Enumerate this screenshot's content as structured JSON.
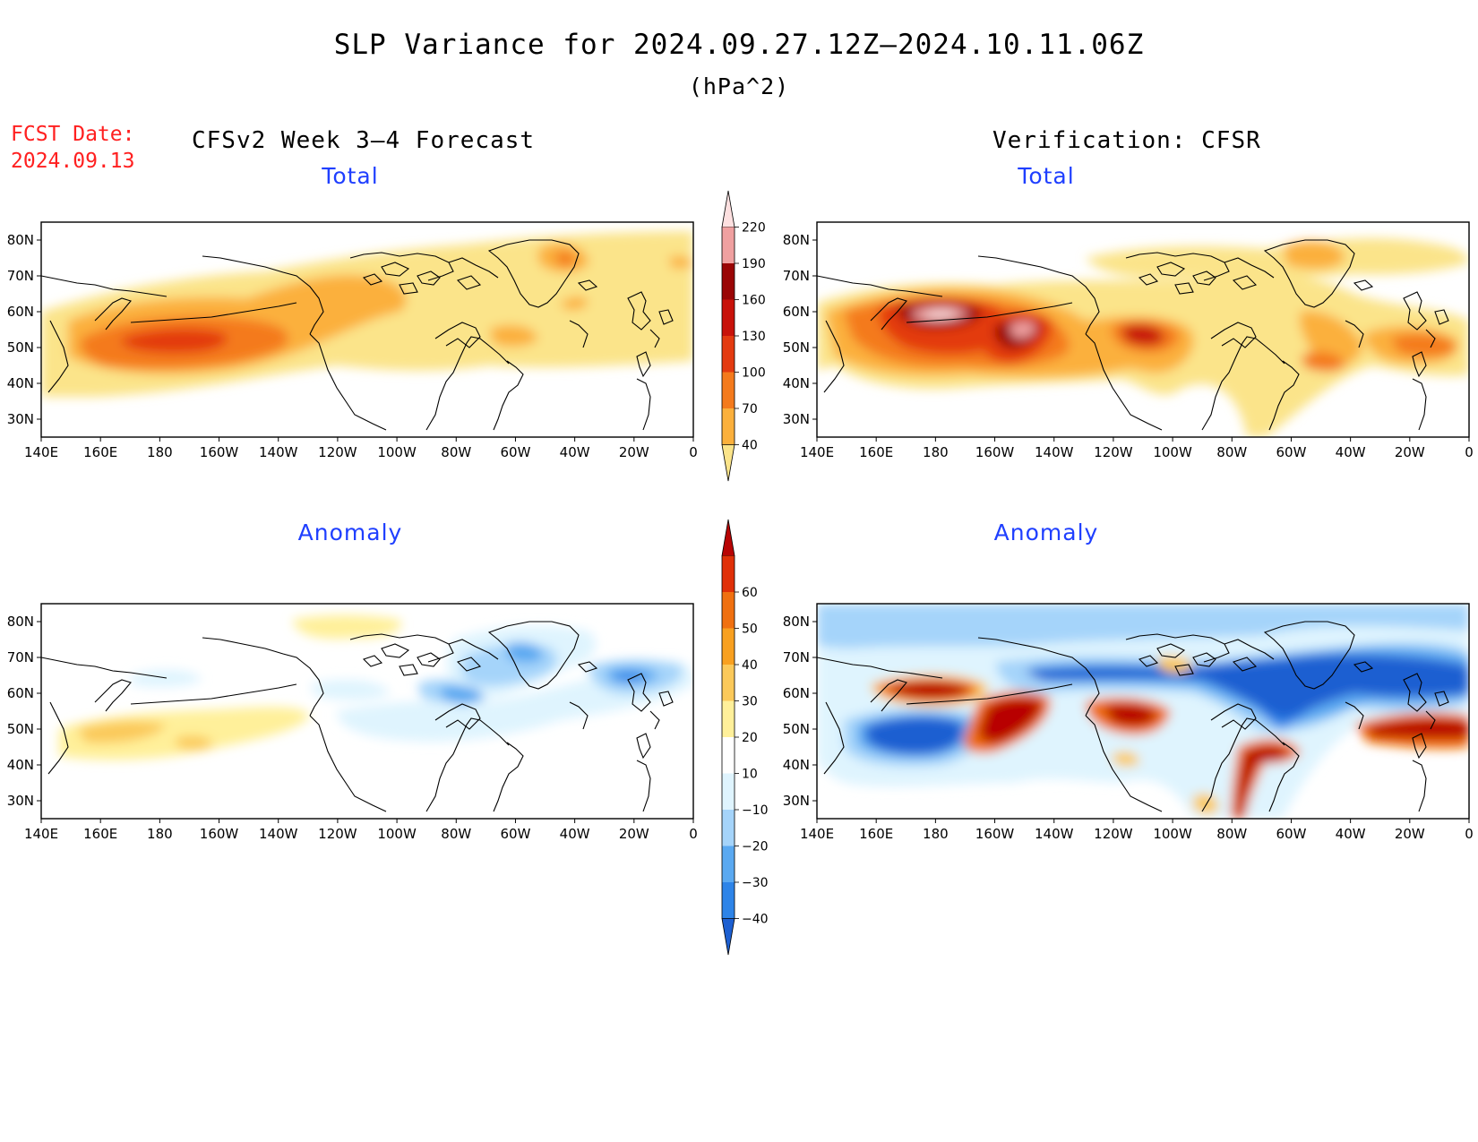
{
  "header": {
    "title": "SLP Variance for 2024.09.27.12Z–2024.10.11.06Z",
    "units": "(hPa^2)",
    "fcst_label": "FCST Date:",
    "fcst_date": "2024.09.13",
    "left_column": "CFSv2 Week 3–4 Forecast",
    "right_column": "Verification: CFSR"
  },
  "panels": {
    "fc_total": {
      "title": "Total"
    },
    "vf_total": {
      "title": "Total"
    },
    "fc_anom": {
      "title": "Anomaly"
    },
    "vf_anom": {
      "title": "Anomaly"
    }
  },
  "axes": {
    "lon_labels": [
      "140E",
      "160E",
      "180",
      "160W",
      "140W",
      "120W",
      "100W",
      "80W",
      "60W",
      "40W",
      "20W",
      "0"
    ],
    "lat_labels": [
      "80N",
      "70N",
      "60N",
      "50N",
      "40N",
      "30N"
    ]
  },
  "colorbars": {
    "total": {
      "labels": [
        "40",
        "70",
        "100",
        "130",
        "160",
        "190",
        "220"
      ],
      "colors": [
        "#fbe48a",
        "#fbb03c",
        "#f47a1c",
        "#e33a10",
        "#c8120a",
        "#9a0505",
        "#f0a0a0",
        "#fde0e0"
      ]
    },
    "anomaly": {
      "labels": [
        "−40",
        "−30",
        "−20",
        "−10",
        "10",
        "20",
        "30",
        "40",
        "50",
        "60"
      ],
      "colors": [
        "#1c5fd1",
        "#2d84e8",
        "#5aa9f1",
        "#a5d4fa",
        "#dff4fe",
        "#ffffff",
        "#fff09a",
        "#fbc95a",
        "#f8a020",
        "#f07010",
        "#e03008",
        "#b80404"
      ]
    }
  }
}
